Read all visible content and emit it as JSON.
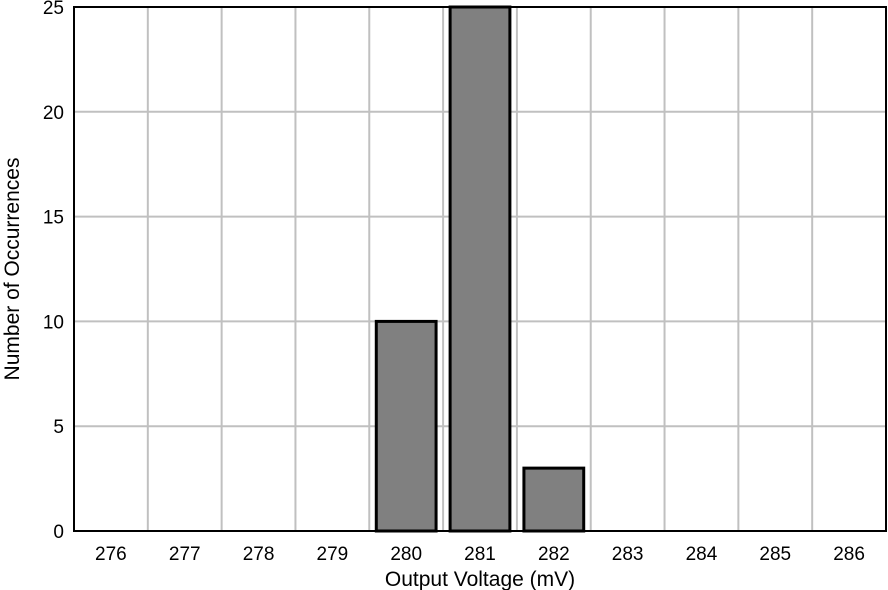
{
  "chart_data": {
    "type": "bar",
    "categories": [
      "276",
      "277",
      "278",
      "279",
      "280",
      "281",
      "282",
      "283",
      "284",
      "285",
      "286"
    ],
    "values": [
      0,
      0,
      0,
      0,
      10,
      25,
      3,
      0,
      0,
      0,
      0
    ],
    "xlabel": "Output Voltage (mV)",
    "ylabel": "Number of Occurrences",
    "ylim": [
      0,
      25
    ],
    "yticks": [
      "0",
      "5",
      "10",
      "15",
      "20",
      "25"
    ],
    "grid": true,
    "legend": "none",
    "colors": {
      "bar_fill": "#808080",
      "bar_stroke": "#000000",
      "grid": "#c0c0c0",
      "frame": "#000000"
    }
  }
}
